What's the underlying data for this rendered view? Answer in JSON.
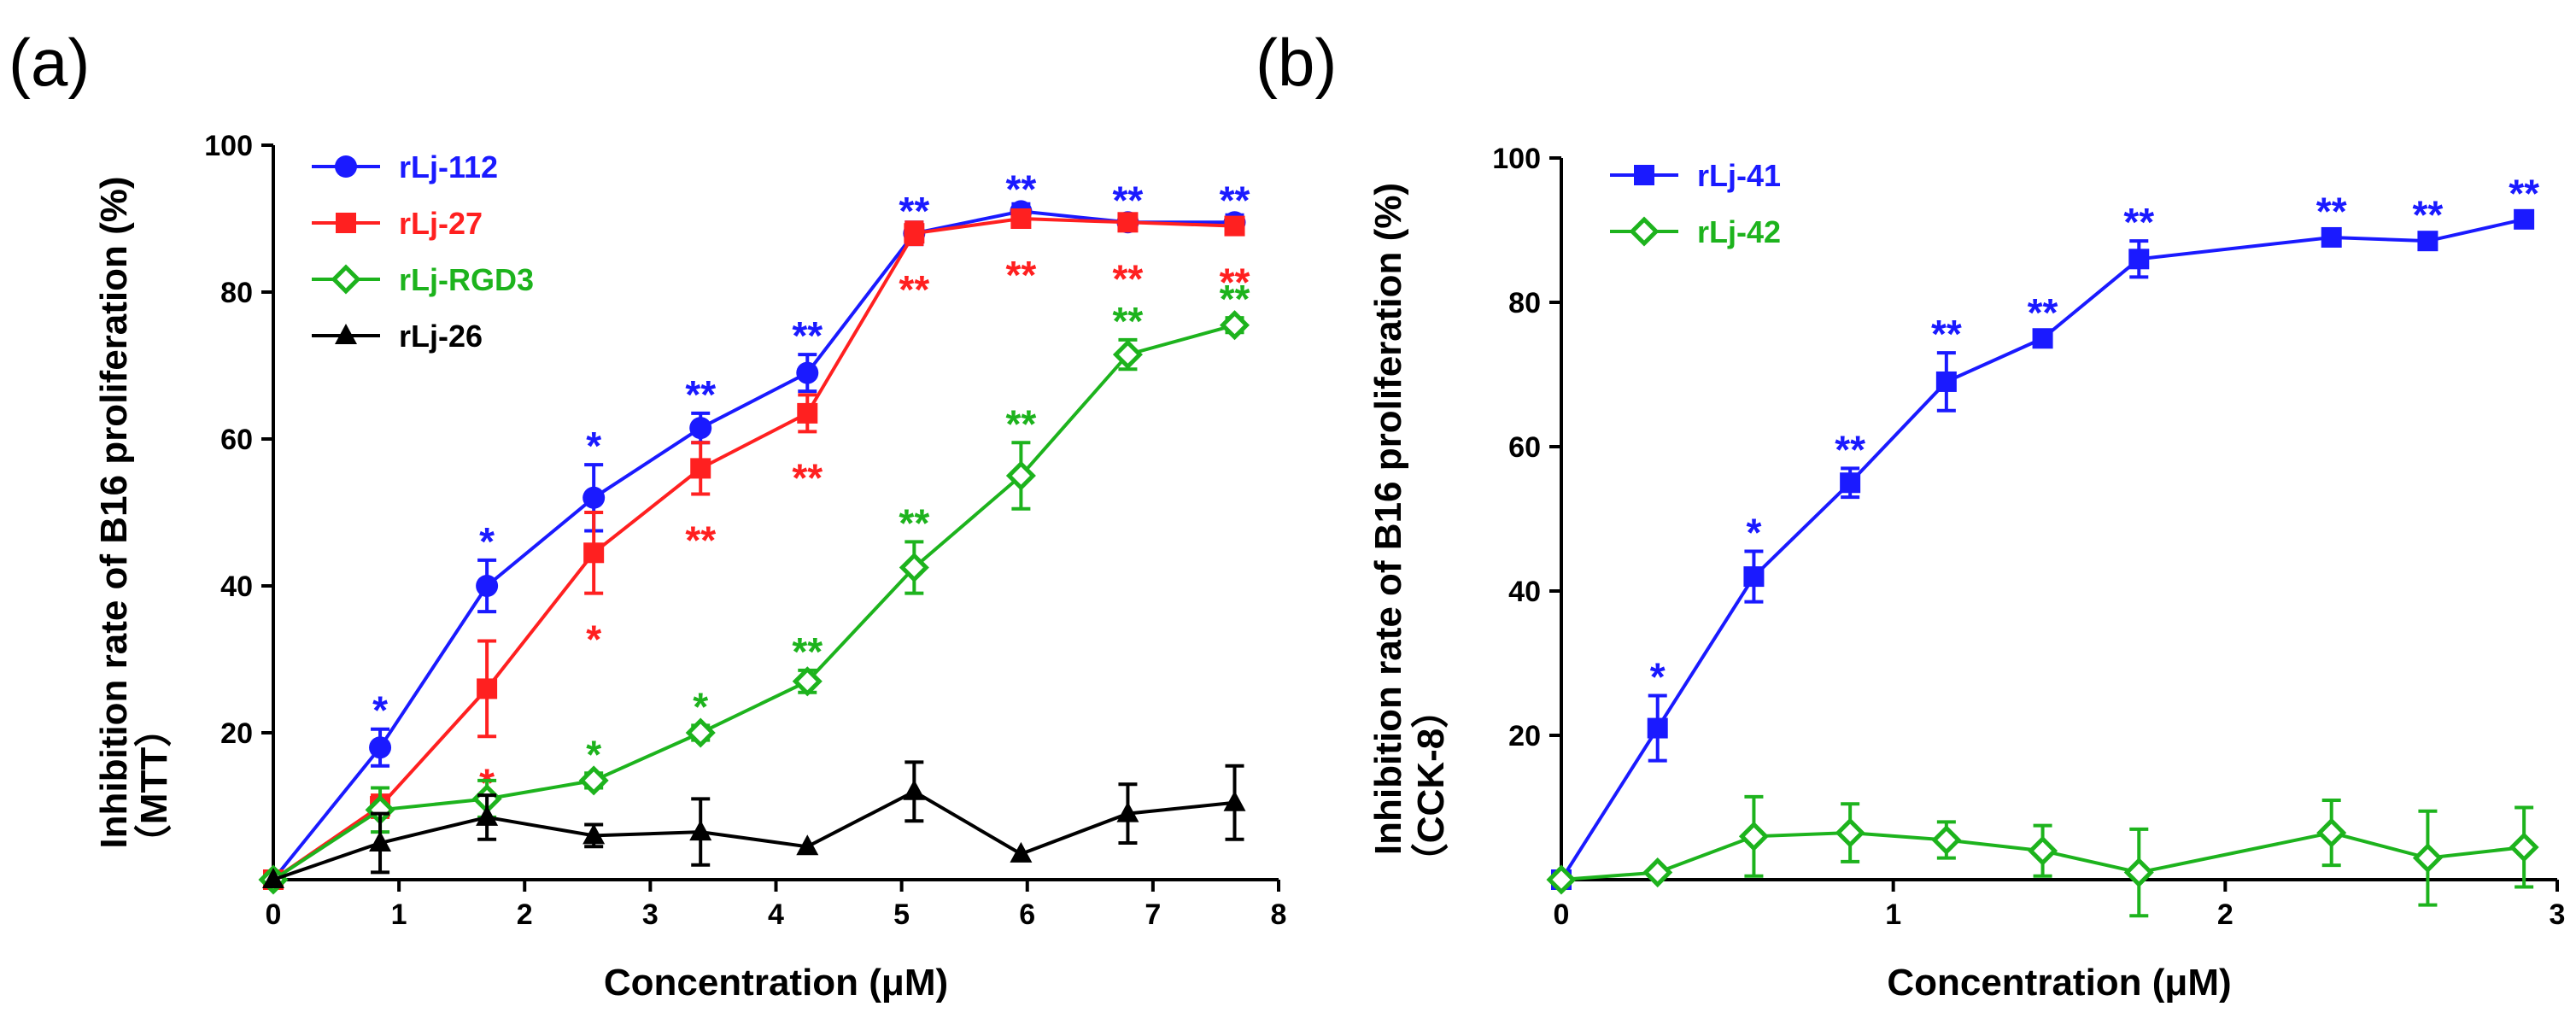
{
  "chart_data": [
    {
      "type": "line",
      "panel_label": "(a)",
      "xlabel": "Concentration (μM)",
      "ylabel": "Inhibition rate of B16 proliferation (%)",
      "ylabel_sub": "（MTT）",
      "xlim": [
        0,
        8
      ],
      "ylim": [
        0,
        100
      ],
      "xticks": [
        "0",
        "1",
        "2",
        "3",
        "4",
        "5",
        "6",
        "7",
        "8"
      ],
      "yticks": [
        "20",
        "40",
        "60",
        "80",
        "100"
      ],
      "legend_position": "top-left",
      "series": [
        {
          "name": "rLj-112",
          "color": "#1a1aff",
          "marker": "circle",
          "x": [
            0,
            0.85,
            1.7,
            2.55,
            3.4,
            4.25,
            5.1,
            5.95,
            6.8,
            7.65
          ],
          "values": [
            0,
            18,
            40,
            52,
            61.5,
            69,
            88,
            91,
            89.5,
            89.5
          ],
          "errors": [
            0.5,
            2.5,
            3.5,
            4.5,
            2,
            2.5,
            1.5,
            1,
            1,
            1
          ],
          "significance": [
            "",
            "*",
            "*",
            "*",
            "**",
            "**",
            "**",
            "**",
            "**",
            "**"
          ]
        },
        {
          "name": "rLj-27",
          "color": "#ff2020",
          "marker": "square",
          "x": [
            0,
            0.85,
            1.7,
            2.55,
            3.4,
            4.25,
            5.1,
            5.95,
            6.8,
            7.65
          ],
          "values": [
            0,
            10,
            26,
            44.5,
            56,
            63.5,
            88,
            90,
            89.5,
            89
          ],
          "errors": [
            0.5,
            1.5,
            6.5,
            5.5,
            3.5,
            2.5,
            1.5,
            1,
            1,
            1
          ],
          "significance": [
            "",
            "",
            "*",
            "*",
            "**",
            "**",
            "**",
            "**",
            "**",
            "**"
          ]
        },
        {
          "name": "rLj-RGD3",
          "color": "#1db31d",
          "marker": "diamond-open",
          "x": [
            0,
            0.85,
            1.7,
            2.55,
            3.4,
            4.25,
            5.1,
            5.95,
            6.8,
            7.65
          ],
          "values": [
            0,
            9.5,
            11,
            13.5,
            20,
            27,
            42.5,
            55,
            71.5,
            75.5
          ],
          "errors": [
            0.5,
            3,
            2.5,
            1,
            1,
            1.5,
            3.5,
            4.5,
            2,
            1
          ],
          "significance": [
            "",
            "",
            "",
            "*",
            "*",
            "**",
            "**",
            "**",
            "**",
            "**"
          ]
        },
        {
          "name": "rLj-26",
          "color": "#000000",
          "marker": "triangle",
          "x": [
            0,
            0.85,
            1.7,
            2.55,
            3.4,
            4.25,
            5.1,
            5.95,
            6.8,
            7.65
          ],
          "values": [
            0,
            5,
            8.5,
            6,
            6.5,
            4.5,
            12,
            3.5,
            9,
            10.5
          ],
          "errors": [
            0.5,
            4,
            3,
            1.5,
            4.5,
            0.5,
            4,
            0.5,
            4,
            5
          ],
          "significance": [
            "",
            "",
            "",
            "",
            "",
            "",
            "",
            "",
            "",
            ""
          ]
        }
      ]
    },
    {
      "type": "line",
      "panel_label": "(b)",
      "xlabel": "Concentration (μM)",
      "ylabel": "Inhibition rate of B16 proliferation (%)",
      "ylabel_sub": "（CCK-8）",
      "xlim": [
        0,
        3
      ],
      "ylim": [
        0,
        100
      ],
      "xticks": [
        "0",
        "1",
        "2",
        "3"
      ],
      "yticks": [
        "20",
        "40",
        "60",
        "80",
        "100"
      ],
      "legend_position": "top-left",
      "series": [
        {
          "name": "rLj-41",
          "color": "#1a1aff",
          "marker": "square",
          "x": [
            0,
            0.29,
            0.58,
            0.87,
            1.16,
            1.45,
            1.74,
            2.32,
            2.61,
            2.9
          ],
          "values": [
            0,
            21,
            42,
            55,
            69,
            75,
            86,
            89,
            88.5,
            91.5
          ],
          "errors": [
            0.5,
            4.5,
            3.5,
            2,
            4,
            1,
            2.5,
            1,
            1,
            1
          ],
          "significance": [
            "",
            "*",
            "*",
            "**",
            "**",
            "**",
            "**",
            "**",
            "**",
            "**"
          ]
        },
        {
          "name": "rLj-42",
          "color": "#1db31d",
          "marker": "diamond-open",
          "x": [
            0,
            0.29,
            0.58,
            0.87,
            1.16,
            1.45,
            1.74,
            2.32,
            2.61,
            2.9
          ],
          "values": [
            0,
            1,
            6,
            6.5,
            5.5,
            4,
            1,
            6.5,
            3,
            4.5
          ],
          "errors": [
            0.5,
            0.5,
            5.5,
            4,
            2.5,
            3.5,
            6,
            4.5,
            6.5,
            5.5
          ],
          "significance": [
            "",
            "",
            "",
            "",
            "",
            "",
            "",
            "",
            "",
            ""
          ]
        }
      ]
    }
  ]
}
